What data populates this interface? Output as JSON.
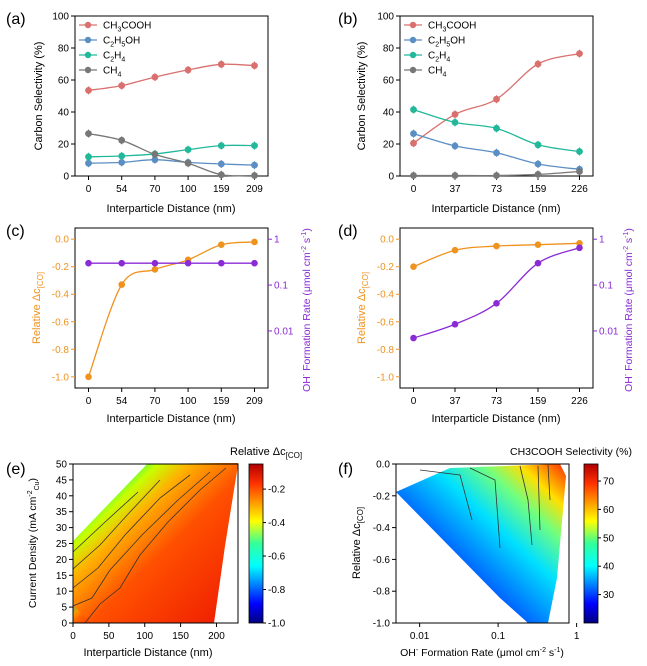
{
  "figure": {
    "panel_labels": [
      "(a)",
      "(b)",
      "(c)",
      "(d)",
      "(e)",
      "(f)"
    ]
  },
  "chart_data": [
    {
      "panel": "(a)",
      "type": "line",
      "xlabel": "Interparticle Distance (nm)",
      "ylabel": "Carbon Selectivity (%)",
      "categories": [
        "0",
        "54",
        "70",
        "100",
        "159",
        "209"
      ],
      "ylim": [
        0,
        100
      ],
      "yticks": [
        "0",
        "20",
        "40",
        "60",
        "80",
        "100"
      ],
      "legend_position": "top-left",
      "series": [
        {
          "name": "CH3COOH",
          "label_main": "CH",
          "label_sub": "3",
          "label_rest": "COOH",
          "color": "#d9706e",
          "values": [
            53.5,
            56.5,
            61.8,
            66.3,
            69.8,
            69.0
          ]
        },
        {
          "name": "C2H5OH",
          "label_main": "C",
          "label_sub": "2",
          "label_rest": "H",
          "label_sub2": "5",
          "label_rest2": "OH",
          "color": "#5b8fc4",
          "values": [
            8.0,
            8.5,
            10.2,
            8.5,
            7.5,
            6.8
          ]
        },
        {
          "name": "C2H4",
          "label_main": "C",
          "label_sub": "2",
          "label_rest": "H",
          "label_sub2": "4",
          "label_rest2": "",
          "color": "#22b89a",
          "values": [
            12.0,
            12.5,
            13.8,
            16.5,
            19.0,
            19.0
          ]
        },
        {
          "name": "CH4",
          "label_main": "CH",
          "label_sub": "4",
          "label_rest": "",
          "color": "#777777",
          "values": [
            26.5,
            22.3,
            13.5,
            8.0,
            0.8,
            0.3
          ]
        }
      ]
    },
    {
      "panel": "(b)",
      "type": "line",
      "xlabel": "Interparticle Distance (nm)",
      "ylabel": "Carbon Selectivity (%)",
      "categories": [
        "0",
        "37",
        "73",
        "159",
        "226"
      ],
      "ylim": [
        0,
        100
      ],
      "yticks": [
        "0",
        "20",
        "40",
        "60",
        "80",
        "100"
      ],
      "legend_position": "top-left",
      "series": [
        {
          "name": "CH3COOH",
          "label_main": "CH",
          "label_sub": "3",
          "label_rest": "COOH",
          "color": "#d9706e",
          "values": [
            20.5,
            38.5,
            48.0,
            70.0,
            76.5
          ]
        },
        {
          "name": "C2H5OH",
          "label_main": "C",
          "label_sub": "2",
          "label_rest": "H",
          "label_sub2": "5",
          "label_rest2": "OH",
          "color": "#5b8fc4",
          "values": [
            26.5,
            18.8,
            14.5,
            7.5,
            4.2
          ]
        },
        {
          "name": "C2H4",
          "label_main": "C",
          "label_sub": "2",
          "label_rest": "H",
          "label_sub2": "4",
          "label_rest2": "",
          "color": "#22b89a",
          "values": [
            41.5,
            33.5,
            29.8,
            19.5,
            15.3
          ]
        },
        {
          "name": "CH4",
          "label_main": "CH",
          "label_sub": "4",
          "label_rest": "",
          "color": "#777777",
          "values": [
            0.3,
            0.3,
            0.3,
            1.0,
            2.8
          ]
        }
      ]
    },
    {
      "panel": "(c)",
      "type": "line",
      "xlabel": "Interparticle Distance (nm)",
      "ylabel_left": "Relative Δc[CO]",
      "ylabel_left_main": "Relative Δc",
      "ylabel_left_sub": "[CO]",
      "ylabel_right": "OH- Formation Rate (μmol cm-2 s-1)",
      "categories": [
        "0",
        "54",
        "70",
        "100",
        "159",
        "209"
      ],
      "ylim_left": [
        -1.0,
        0.0
      ],
      "yticks_left": [
        "-1.0",
        "-0.8",
        "-0.6",
        "-0.4",
        "-0.2",
        "0.0"
      ],
      "ylim_right_log": [
        0.001,
        1
      ],
      "yticks_right": [
        "0.01",
        "0.1",
        "1"
      ],
      "series": [
        {
          "name": "Relative Δc[CO]",
          "axis": "left",
          "color": "#f0921e",
          "values": [
            -1.0,
            -0.33,
            -0.22,
            -0.15,
            -0.04,
            -0.02
          ]
        },
        {
          "name": "OH- Formation Rate",
          "axis": "right",
          "color": "#8a2bd6",
          "values": [
            0.3,
            0.3,
            0.3,
            0.3,
            0.3,
            0.3
          ]
        }
      ]
    },
    {
      "panel": "(d)",
      "type": "line",
      "xlabel": "Interparticle Distance (nm)",
      "ylabel_left": "Relative Δc[CO]",
      "ylabel_left_main": "Relative Δc",
      "ylabel_left_sub": "[CO]",
      "ylabel_right": "OH- Formation Rate (μmol cm-2 s-1)",
      "categories": [
        "0",
        "37",
        "73",
        "159",
        "226"
      ],
      "ylim_left": [
        -1.0,
        0.0
      ],
      "yticks_left": [
        "-1.0",
        "-0.8",
        "-0.6",
        "-0.4",
        "-0.2",
        "0.0"
      ],
      "ylim_right_log": [
        0.001,
        1
      ],
      "yticks_right": [
        "0.01",
        "0.1",
        "1"
      ],
      "series": [
        {
          "name": "Relative Δc[CO]",
          "axis": "left",
          "color": "#f0921e",
          "values": [
            -0.2,
            -0.08,
            -0.05,
            -0.04,
            -0.03
          ]
        },
        {
          "name": "OH- Formation Rate",
          "axis": "right",
          "color": "#8a2bd6",
          "values": [
            0.007,
            0.014,
            0.04,
            0.3,
            0.65
          ]
        }
      ]
    },
    {
      "panel": "(e)",
      "type": "heatmap",
      "title": "Relative Δc[CO]",
      "title_main": "Relative Δc",
      "title_sub": "[CO]",
      "xlabel": "Interparticle Distance (nm)",
      "ylabel": "Current Density (mA cm-2 Cu)",
      "xlim": [
        0,
        230
      ],
      "xticks": [
        "0",
        "50",
        "100",
        "150",
        "200"
      ],
      "ylim": [
        0,
        50
      ],
      "yticks": [
        "0",
        "5",
        "10",
        "15",
        "20",
        "25",
        "30",
        "35",
        "40",
        "45",
        "50"
      ],
      "colorbar_range": [
        -1.0,
        -0.05
      ],
      "colorbar_ticks": [
        "-1.0",
        "-0.8",
        "-0.6",
        "-0.4",
        "-0.2"
      ]
    },
    {
      "panel": "(f)",
      "type": "heatmap",
      "title": "CH3COOH Selectivity (%)",
      "xlabel": "OH- Formation Rate (μmol cm-2 s-1)",
      "ylabel": "Relative Δc[CO]",
      "ylabel_main": "Relative Δc",
      "ylabel_sub": "[CO]",
      "xlim_log": [
        0.005,
        0.8
      ],
      "xticks": [
        "0.01",
        "0.1",
        "1"
      ],
      "ylim": [
        -1.0,
        0.0
      ],
      "yticks": [
        "-1.0",
        "-0.8",
        "-0.6",
        "-0.4",
        "-0.2",
        "0.0"
      ],
      "colorbar_range": [
        20,
        76
      ],
      "colorbar_ticks": [
        "30",
        "40",
        "50",
        "60",
        "70"
      ]
    }
  ]
}
